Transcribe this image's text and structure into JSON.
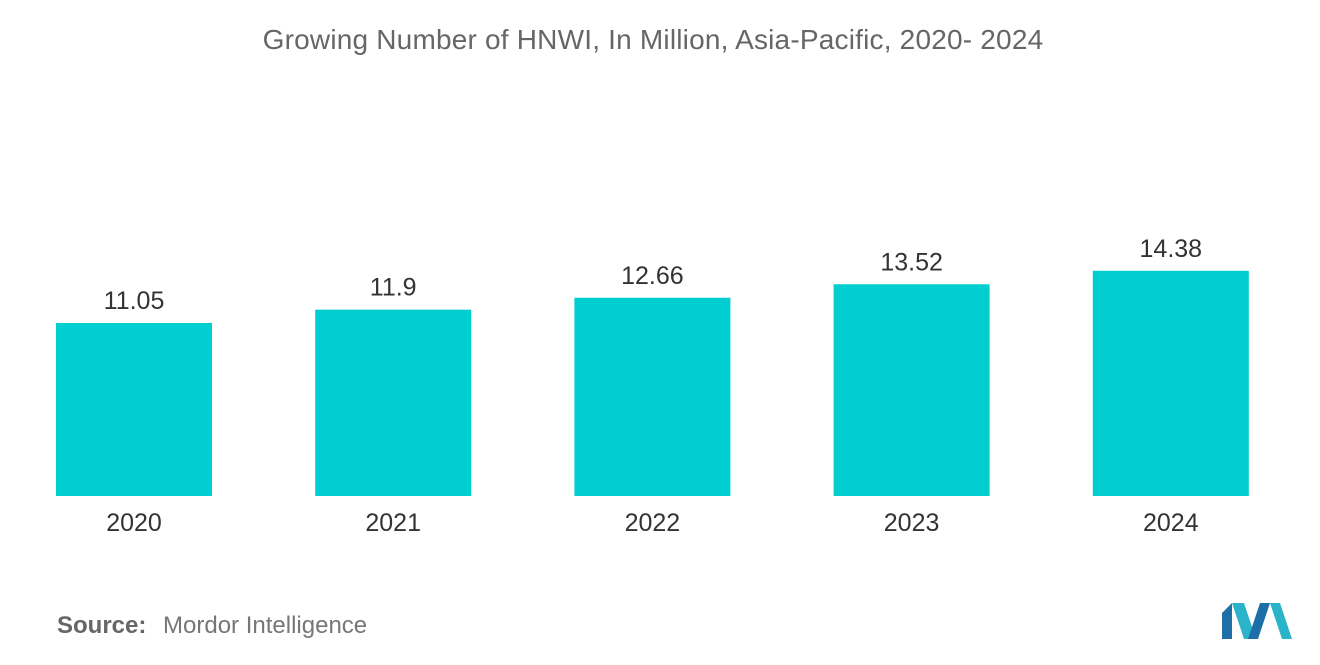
{
  "chart_data": {
    "type": "bar",
    "title": "Growing Number of HNWI, In Million, Asia-Pacific, 2020- 2024",
    "categories": [
      "2020",
      "2021",
      "2022",
      "2023",
      "2024"
    ],
    "values": [
      11.05,
      11.9,
      12.66,
      13.52,
      14.38
    ],
    "value_labels": [
      "11.05",
      "11.9",
      "12.66",
      "13.52",
      "14.38"
    ],
    "xlabel": "",
    "ylabel": "",
    "grid": false,
    "legend": "none",
    "bar_color": "#00ced1"
  },
  "source": {
    "label": "Source:",
    "text": "Mordor Intelligence"
  },
  "logo": {
    "icon": "mordor-intelligence-logo-icon",
    "colors": [
      "#1e6fa8",
      "#2bb3c9"
    ]
  }
}
